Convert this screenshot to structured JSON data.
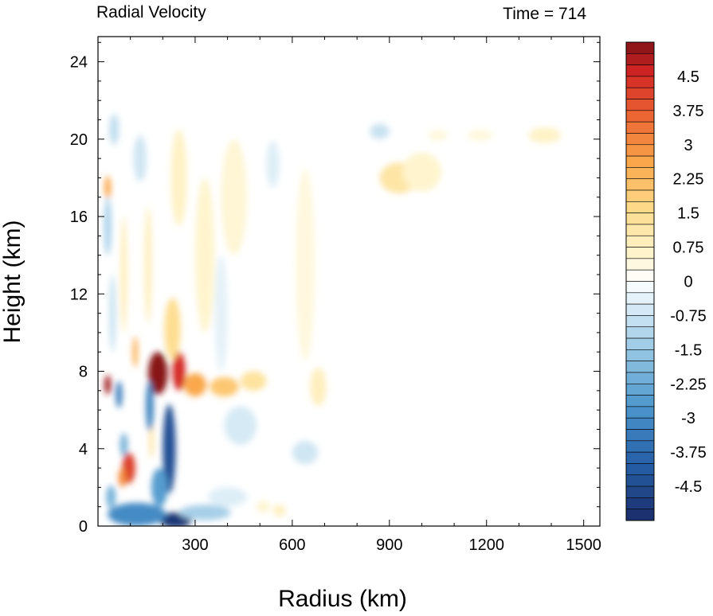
{
  "chart_data": {
    "type": "heatmap",
    "title_left": "Radial Velocity",
    "title_right": "Time = 714",
    "xlabel": "Radius (km)",
    "ylabel": "Height (km)",
    "xlim": [
      0,
      1550
    ],
    "ylim": [
      0,
      25.3
    ],
    "xticks": [
      300,
      600,
      900,
      1200,
      1500
    ],
    "yticks": [
      0,
      4,
      8,
      12,
      16,
      20,
      24
    ],
    "colorbar": {
      "range": [
        -5.25,
        5.25
      ],
      "step": 0.25,
      "labels": [
        "4.5",
        "3.75",
        "3",
        "2.25",
        "1.5",
        "0.75",
        "0",
        "-0.75",
        "-1.5",
        "-2.25",
        "-3",
        "-3.75",
        "-4.5"
      ],
      "label_values": [
        4.5,
        3.75,
        3,
        2.25,
        1.5,
        0.75,
        0,
        -0.75,
        -1.5,
        -2.25,
        -3,
        -3.75,
        -4.5
      ]
    },
    "features": [
      {
        "r": 185,
        "z": 7.9,
        "sr": 30,
        "sz": 1.1,
        "v": 5.2
      },
      {
        "r": 250,
        "z": 8.0,
        "sr": 20,
        "sz": 1.0,
        "v": 4.5
      },
      {
        "r": 300,
        "z": 7.3,
        "sr": 35,
        "sz": 0.6,
        "v": 2.6
      },
      {
        "r": 390,
        "z": 7.2,
        "sr": 45,
        "sz": 0.5,
        "v": 2.0
      },
      {
        "r": 480,
        "z": 7.5,
        "sr": 40,
        "sz": 0.5,
        "v": 1.3
      },
      {
        "r": 230,
        "z": 10.2,
        "sr": 25,
        "sz": 1.6,
        "v": 1.5
      },
      {
        "r": 30,
        "z": 7.3,
        "sr": 10,
        "sz": 0.5,
        "v": 5.0
      },
      {
        "r": 95,
        "z": 3.0,
        "sr": 20,
        "sz": 0.8,
        "v": 4.2
      },
      {
        "r": 75,
        "z": 2.5,
        "sr": 12,
        "sz": 0.5,
        "v": 3.0
      },
      {
        "r": 30,
        "z": 17.5,
        "sr": 10,
        "sz": 0.6,
        "v": 2.6
      },
      {
        "r": 30,
        "z": 16.0,
        "sr": 10,
        "sz": 0.6,
        "v": 1.4
      },
      {
        "r": 115,
        "z": 9.0,
        "sr": 8,
        "sz": 0.8,
        "v": 2.4
      },
      {
        "r": 165,
        "z": 4.5,
        "sr": 6,
        "sz": 1.0,
        "v": 1.5
      },
      {
        "r": 220,
        "z": 4.0,
        "sr": 20,
        "sz": 2.3,
        "v": -4.4
      },
      {
        "r": 190,
        "z": 2.0,
        "sr": 25,
        "sz": 1.0,
        "v": -2.6
      },
      {
        "r": 240,
        "z": 0.3,
        "sr": 50,
        "sz": 0.4,
        "v": -5.0
      },
      {
        "r": 120,
        "z": 0.6,
        "sr": 90,
        "sz": 0.6,
        "v": -3.0
      },
      {
        "r": 160,
        "z": 6.2,
        "sr": 12,
        "sz": 1.3,
        "v": -3.2
      },
      {
        "r": 65,
        "z": 6.8,
        "sr": 10,
        "sz": 0.7,
        "v": -3.3
      },
      {
        "r": 80,
        "z": 4.2,
        "sr": 12,
        "sz": 0.6,
        "v": -2.0
      },
      {
        "r": 40,
        "z": 1.5,
        "sr": 15,
        "sz": 0.6,
        "v": -2.0
      },
      {
        "r": 30,
        "z": 15.5,
        "sr": 12,
        "sz": 1.5,
        "v": -1.2
      },
      {
        "r": 50,
        "z": 20.5,
        "sr": 15,
        "sz": 0.8,
        "v": -0.9
      },
      {
        "r": 130,
        "z": 19.0,
        "sr": 20,
        "sz": 1.2,
        "v": -0.7
      },
      {
        "r": 80,
        "z": 13.0,
        "sr": 10,
        "sz": 3.0,
        "v": 0.9
      },
      {
        "r": 45,
        "z": 11.0,
        "sr": 10,
        "sz": 2.0,
        "v": -0.8
      },
      {
        "r": 155,
        "z": 13.5,
        "sr": 12,
        "sz": 3.0,
        "v": 0.8
      },
      {
        "r": 330,
        "z": 14.0,
        "sr": 30,
        "sz": 4.0,
        "v": 0.6
      },
      {
        "r": 420,
        "z": 17.0,
        "sr": 40,
        "sz": 3.0,
        "v": 0.5
      },
      {
        "r": 250,
        "z": 18.0,
        "sr": 25,
        "sz": 2.5,
        "v": 0.7
      },
      {
        "r": 640,
        "z": 13.5,
        "sr": 30,
        "sz": 5.0,
        "v": 0.4
      },
      {
        "r": 680,
        "z": 7.2,
        "sr": 25,
        "sz": 1.0,
        "v": 0.8
      },
      {
        "r": 440,
        "z": 5.2,
        "sr": 50,
        "sz": 1.0,
        "v": -0.6
      },
      {
        "r": 640,
        "z": 3.8,
        "sr": 40,
        "sz": 0.6,
        "v": -0.7
      },
      {
        "r": 400,
        "z": 1.5,
        "sr": 60,
        "sz": 0.5,
        "v": -0.5
      },
      {
        "r": 330,
        "z": 0.7,
        "sr": 80,
        "sz": 0.4,
        "v": -1.3
      },
      {
        "r": 560,
        "z": 0.8,
        "sr": 20,
        "sz": 0.3,
        "v": 0.8
      },
      {
        "r": 930,
        "z": 18.0,
        "sr": 60,
        "sz": 0.8,
        "v": 1.2
      },
      {
        "r": 1000,
        "z": 18.3,
        "sr": 60,
        "sz": 1.0,
        "v": 0.6
      },
      {
        "r": 870,
        "z": 20.4,
        "sr": 30,
        "sz": 0.4,
        "v": -0.8
      },
      {
        "r": 1380,
        "z": 20.2,
        "sr": 50,
        "sz": 0.4,
        "v": 0.7
      },
      {
        "r": 1180,
        "z": 20.2,
        "sr": 40,
        "sz": 0.3,
        "v": 0.4
      },
      {
        "r": 1050,
        "z": 20.2,
        "sr": 30,
        "sz": 0.3,
        "v": 0.4
      },
      {
        "r": 540,
        "z": 18.7,
        "sr": 20,
        "sz": 1.2,
        "v": -0.5
      },
      {
        "r": 380,
        "z": 11.0,
        "sr": 20,
        "sz": 3.0,
        "v": -0.4
      },
      {
        "r": 510,
        "z": 1.0,
        "sr": 20,
        "sz": 0.3,
        "v": 0.6
      }
    ]
  }
}
